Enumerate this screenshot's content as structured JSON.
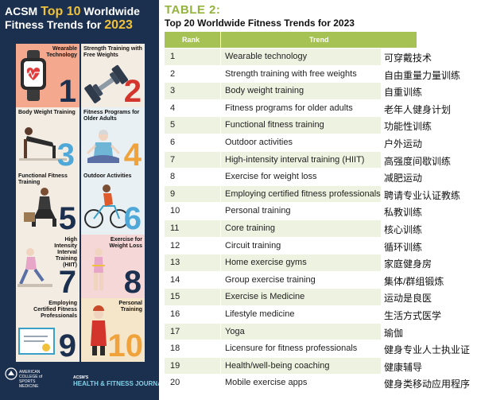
{
  "infographic": {
    "heading_line1_a": "ACSM ",
    "heading_line1_b": "Top 10",
    "heading_line1_c": " Worldwide",
    "heading_line2_a": "Fitness Trends ",
    "heading_line2_b": "for ",
    "heading_line2_c": "2023",
    "tiles": [
      {
        "label": "Wearable Technology",
        "number": "1"
      },
      {
        "label": "Strength Training with Free Weights",
        "number": "2"
      },
      {
        "label": "Body Weight Training",
        "number": "3"
      },
      {
        "label": "Fitness Programs for Older Adults",
        "number": "4"
      },
      {
        "label": "Functional Fitness Training",
        "number": "5"
      },
      {
        "label": "Outdoor Activities",
        "number": "6"
      },
      {
        "label": "High Intensity Interval Training (HIIT)",
        "number": "7"
      },
      {
        "label": "Exercise for Weight Loss",
        "number": "8"
      },
      {
        "label": "Employing Certified Fitness Professionals",
        "number": "9"
      },
      {
        "label": "Personal Training",
        "number": "10"
      }
    ],
    "footer_org": "AMERICAN COLLEGE of SPORTS MEDICINE",
    "footer_journal_small": "ACSM'S",
    "footer_journal": "HEALTH & FITNESS JOURNAL"
  },
  "table": {
    "label": "TABLE 2:",
    "title": "Top 20 Worldwide Fitness Trends for 2023",
    "col_rank": "Rank",
    "col_trend": "Trend",
    "rows": [
      {
        "rank": "1",
        "trend": "Wearable technology",
        "zh": "可穿戴技术"
      },
      {
        "rank": "2",
        "trend": "Strength training with free weights",
        "zh": "自由重量力量训练"
      },
      {
        "rank": "3",
        "trend": "Body weight training",
        "zh": "自重训练"
      },
      {
        "rank": "4",
        "trend": "Fitness programs for older adults",
        "zh": "老年人健身计划"
      },
      {
        "rank": "5",
        "trend": "Functional fitness training",
        "zh": "功能性训练"
      },
      {
        "rank": "6",
        "trend": "Outdoor activities",
        "zh": "户外运动"
      },
      {
        "rank": "7",
        "trend": "High-intensity interval training (HIIT)",
        "zh": "高强度间歇训练"
      },
      {
        "rank": "8",
        "trend": "Exercise for weight loss",
        "zh": "减肥运动"
      },
      {
        "rank": "9",
        "trend": "Employing certified fitness professionals",
        "zh": "聘请专业认证教练"
      },
      {
        "rank": "10",
        "trend": "Personal training",
        "zh": "私教训练"
      },
      {
        "rank": "11",
        "trend": "Core training",
        "zh": "核心训练"
      },
      {
        "rank": "12",
        "trend": "Circuit training",
        "zh": "循环训练"
      },
      {
        "rank": "13",
        "trend": "Home exercise gyms",
        "zh": "家庭健身房"
      },
      {
        "rank": "14",
        "trend": "Group exercise training",
        "zh": "集体/群组锻炼"
      },
      {
        "rank": "15",
        "trend": "Exercise is Medicine",
        "zh": "运动是良医"
      },
      {
        "rank": "16",
        "trend": "Lifestyle medicine",
        "zh": "生活方式医学"
      },
      {
        "rank": "17",
        "trend": "Yoga",
        "zh": "瑜伽"
      },
      {
        "rank": "18",
        "trend": "Licensure for fitness professionals",
        "zh": "健身专业人士执业证"
      },
      {
        "rank": "19",
        "trend": "Health/well-being coaching",
        "zh": "健康辅导"
      },
      {
        "rank": "20",
        "trend": "Mobile exercise apps",
        "zh": "健身类移动应用程序"
      }
    ]
  },
  "colors": {
    "navy": "#1b2f4f",
    "accent_yellow": "#f0c23b",
    "table_green": "#a6c154",
    "row_tint": "#eef2e0"
  }
}
